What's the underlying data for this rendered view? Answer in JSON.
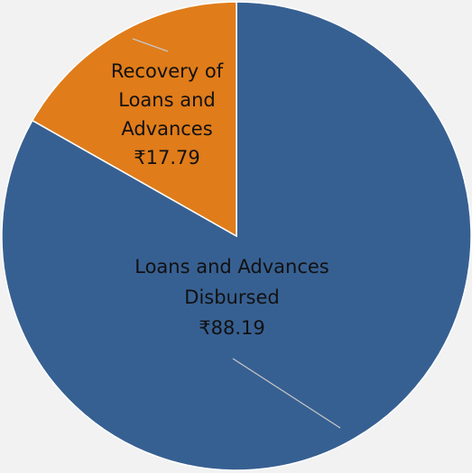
{
  "chart_data": {
    "type": "pie",
    "currency": "₹",
    "start_angle_deg": 0,
    "direction": "clockwise",
    "slices": [
      {
        "name_lines": [
          "Loans and Advances",
          "Disbursed"
        ],
        "value": 88.19,
        "value_label": "₹88.19",
        "color": "#376092"
      },
      {
        "name_lines": [
          "Recovery of",
          "Loans and",
          "Advances"
        ],
        "value": 17.79,
        "value_label": "₹17.79",
        "color": "#e07c1a"
      }
    ]
  },
  "colors": {
    "background": "#f2f2f2",
    "slice_border": "#ffffff",
    "leader_line": "#c8c8c8"
  }
}
